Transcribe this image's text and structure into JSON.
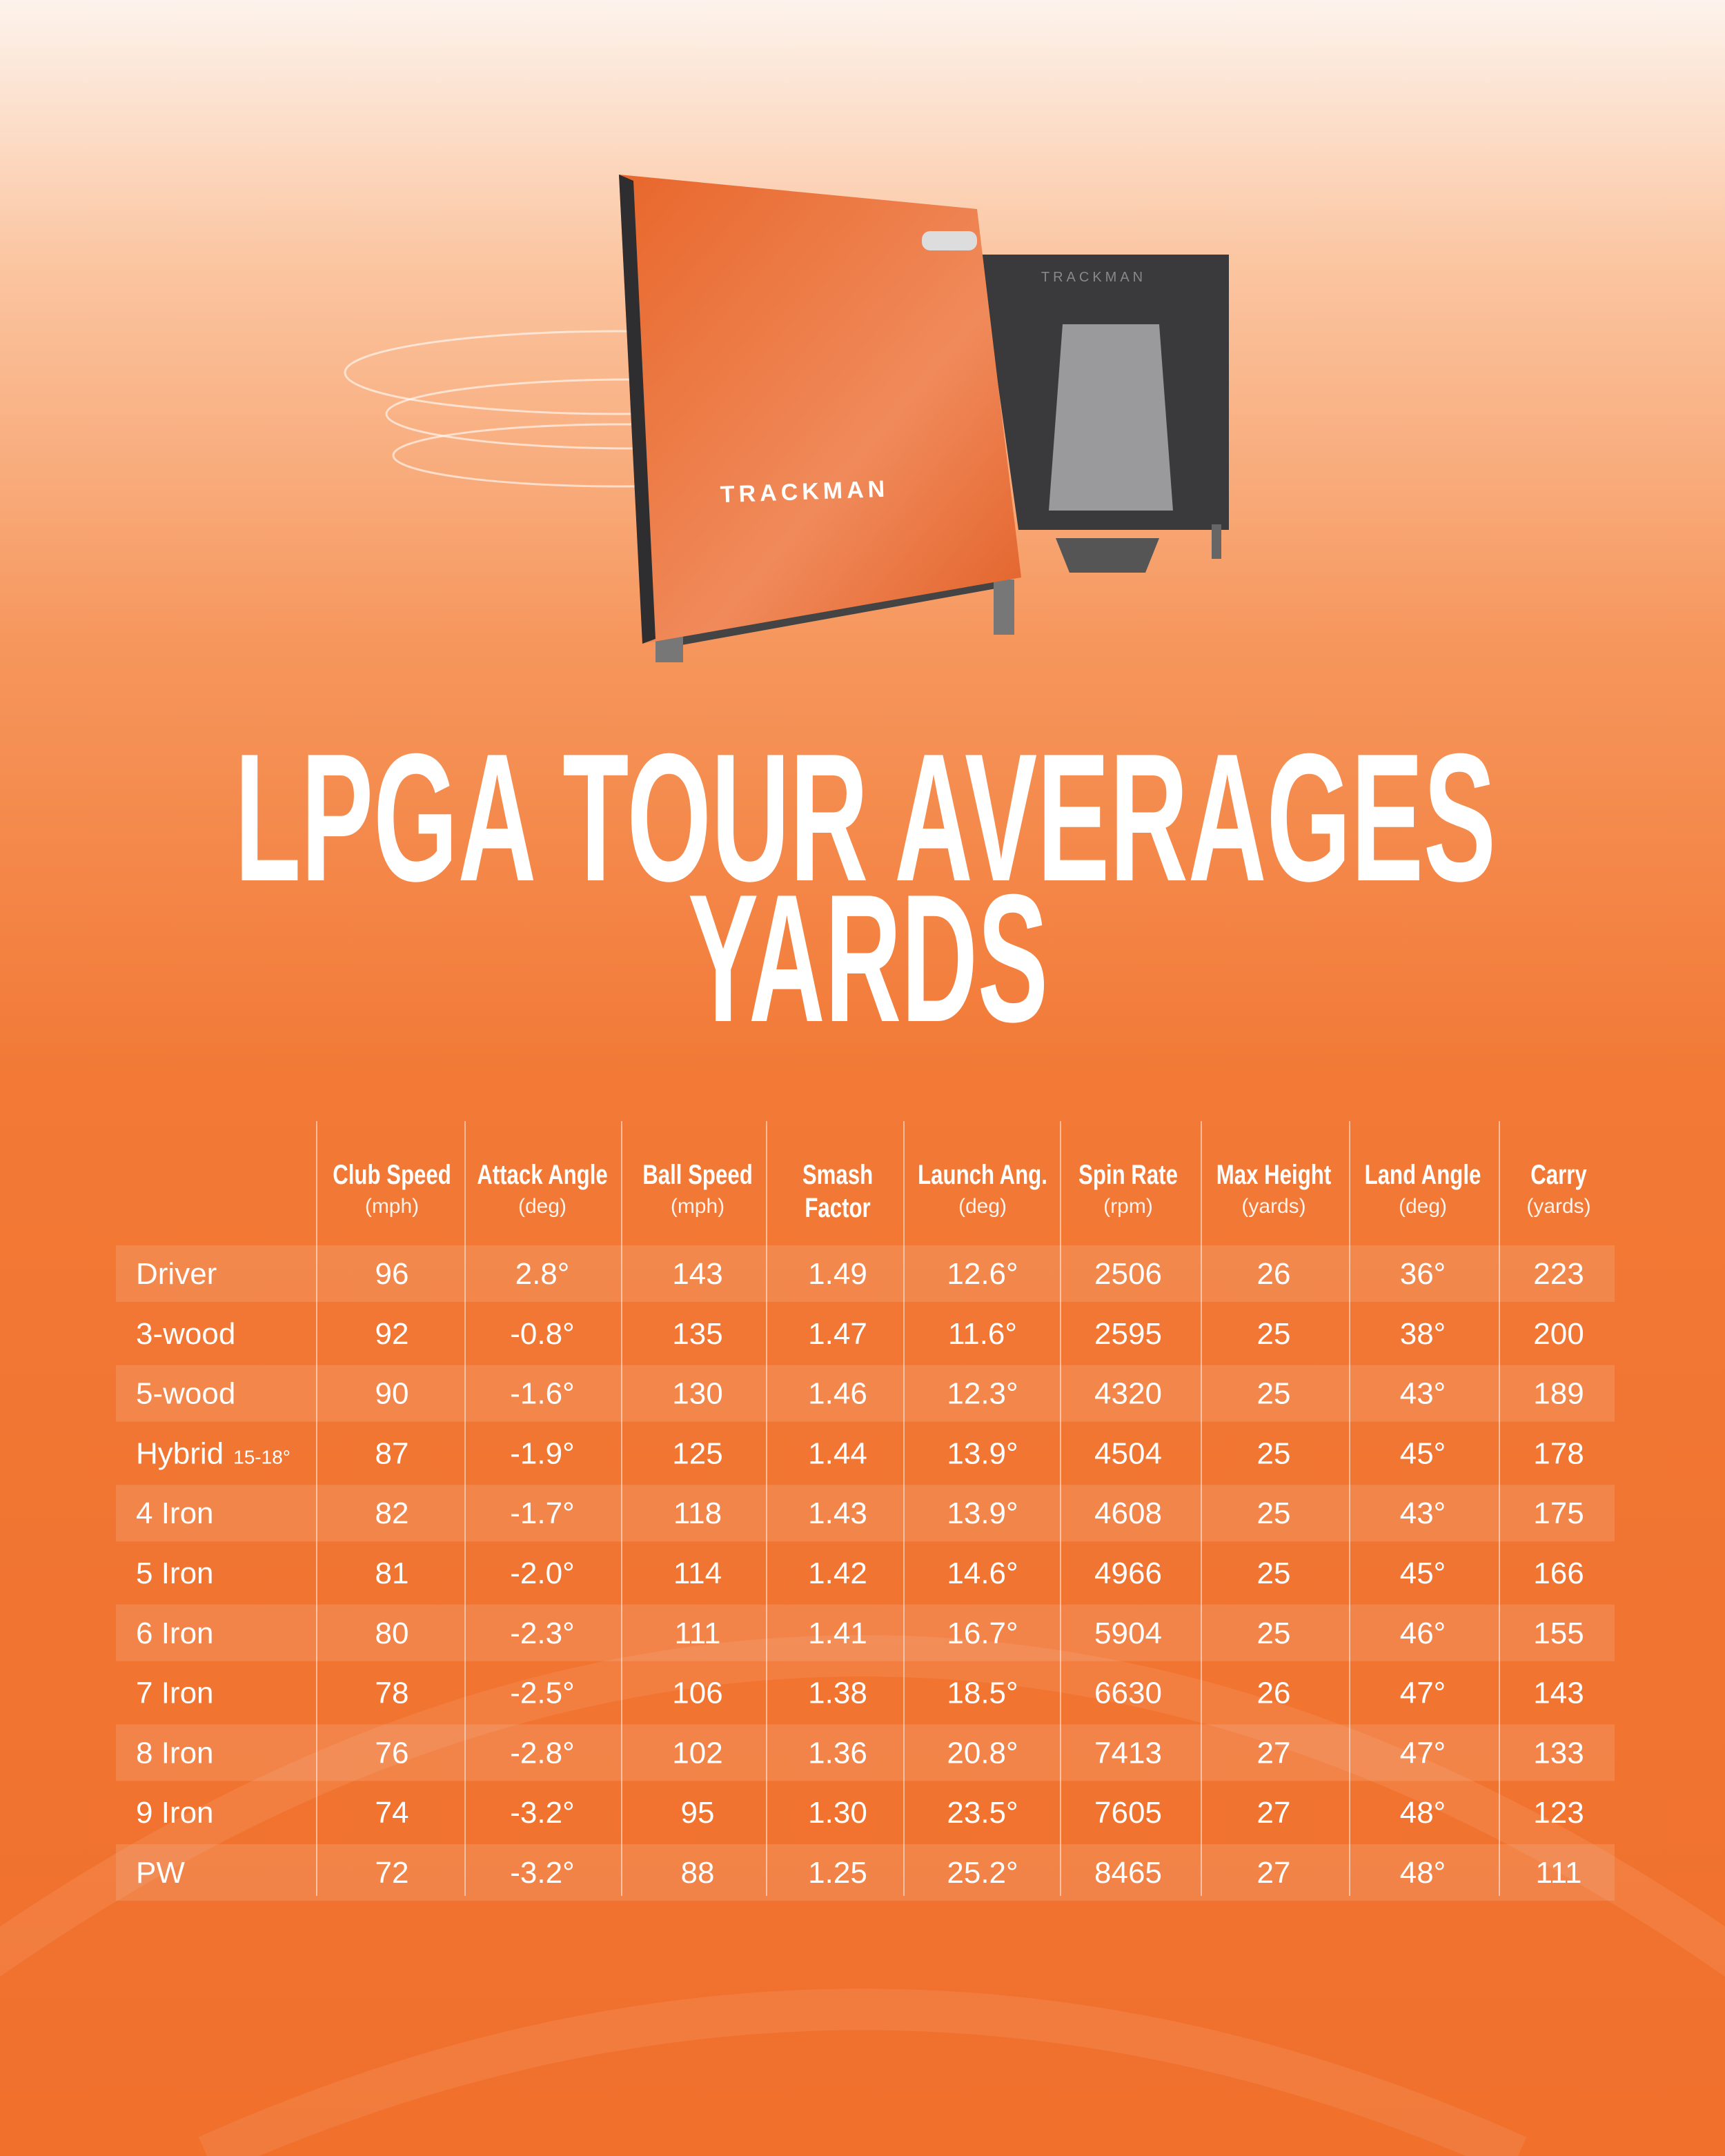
{
  "product": {
    "front_label": "TRACKMAN",
    "back_label": "TRACKMAN"
  },
  "title": {
    "line1": "LPGA TOUR AVERAGES",
    "line2": "YARDS"
  },
  "table": {
    "headers": [
      {
        "name": "Club Speed",
        "unit": "(mph)"
      },
      {
        "name": "Attack Angle",
        "unit": "(deg)"
      },
      {
        "name": "Ball Speed",
        "unit": "(mph)"
      },
      {
        "name": "Smash",
        "name2": "Factor"
      },
      {
        "name": "Launch Ang.",
        "unit": "(deg)"
      },
      {
        "name": "Spin Rate",
        "unit": "(rpm)"
      },
      {
        "name": "Max Height",
        "unit": "(yards)"
      },
      {
        "name": "Land Angle",
        "unit": "(deg)"
      },
      {
        "name": "Carry",
        "unit": "(yards)"
      }
    ],
    "rows": [
      {
        "club": "Driver",
        "values": [
          "96",
          "2.8°",
          "143",
          "1.49",
          "12.6°",
          "2506",
          "26",
          "36°",
          "223"
        ]
      },
      {
        "club": "3-wood",
        "values": [
          "92",
          "-0.8°",
          "135",
          "1.47",
          "11.6°",
          "2595",
          "25",
          "38°",
          "200"
        ]
      },
      {
        "club": "5-wood",
        "values": [
          "90",
          "-1.6°",
          "130",
          "1.46",
          "12.3°",
          "4320",
          "25",
          "43°",
          "189"
        ]
      },
      {
        "club": "Hybrid",
        "note": "15-18°",
        "values": [
          "87",
          "-1.9°",
          "125",
          "1.44",
          "13.9°",
          "4504",
          "25",
          "45°",
          "178"
        ]
      },
      {
        "club": "4 Iron",
        "values": [
          "82",
          "-1.7°",
          "118",
          "1.43",
          "13.9°",
          "4608",
          "25",
          "43°",
          "175"
        ]
      },
      {
        "club": "5 Iron",
        "values": [
          "81",
          "-2.0°",
          "114",
          "1.42",
          "14.6°",
          "4966",
          "25",
          "45°",
          "166"
        ]
      },
      {
        "club": "6 Iron",
        "values": [
          "80",
          "-2.3°",
          "111",
          "1.41",
          "16.7°",
          "5904",
          "25",
          "46°",
          "155"
        ]
      },
      {
        "club": "7 Iron",
        "values": [
          "78",
          "-2.5°",
          "106",
          "1.38",
          "18.5°",
          "6630",
          "26",
          "47°",
          "143"
        ]
      },
      {
        "club": "8 Iron",
        "values": [
          "76",
          "-2.8°",
          "102",
          "1.36",
          "20.8°",
          "7413",
          "27",
          "47°",
          "133"
        ]
      },
      {
        "club": "9 Iron",
        "values": [
          "74",
          "-3.2°",
          "95",
          "1.30",
          "23.5°",
          "7605",
          "27",
          "48°",
          "123"
        ]
      },
      {
        "club": "PW",
        "values": [
          "72",
          "-3.2°",
          "88",
          "1.25",
          "25.2°",
          "8465",
          "27",
          "48°",
          "111"
        ]
      }
    ]
  }
}
